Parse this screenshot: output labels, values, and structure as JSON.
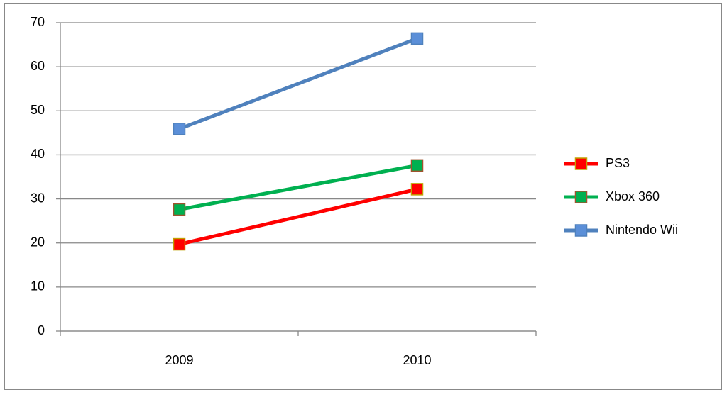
{
  "chart_data": {
    "type": "line",
    "categories": [
      "2009",
      "2010"
    ],
    "series": [
      {
        "name": "PS3",
        "color": "#ff0000",
        "marker_color": "#ff0000",
        "marker_edge": "#c0a000",
        "values": [
          19.7,
          32.2
        ]
      },
      {
        "name": "Xbox 360",
        "color": "#00b050",
        "marker_color": "#00b050",
        "marker_edge": "#a0522d",
        "values": [
          27.6,
          37.6
        ]
      },
      {
        "name": "Nintendo Wii",
        "color": "#4f81bd",
        "marker_color": "#5b8fd8",
        "marker_edge": "#4f81bd",
        "values": [
          45.9,
          66.4
        ]
      }
    ],
    "ylim": [
      0,
      70
    ],
    "yticks": [
      0,
      10,
      20,
      30,
      40,
      50,
      60,
      70
    ],
    "grid": true,
    "legend": "right"
  }
}
